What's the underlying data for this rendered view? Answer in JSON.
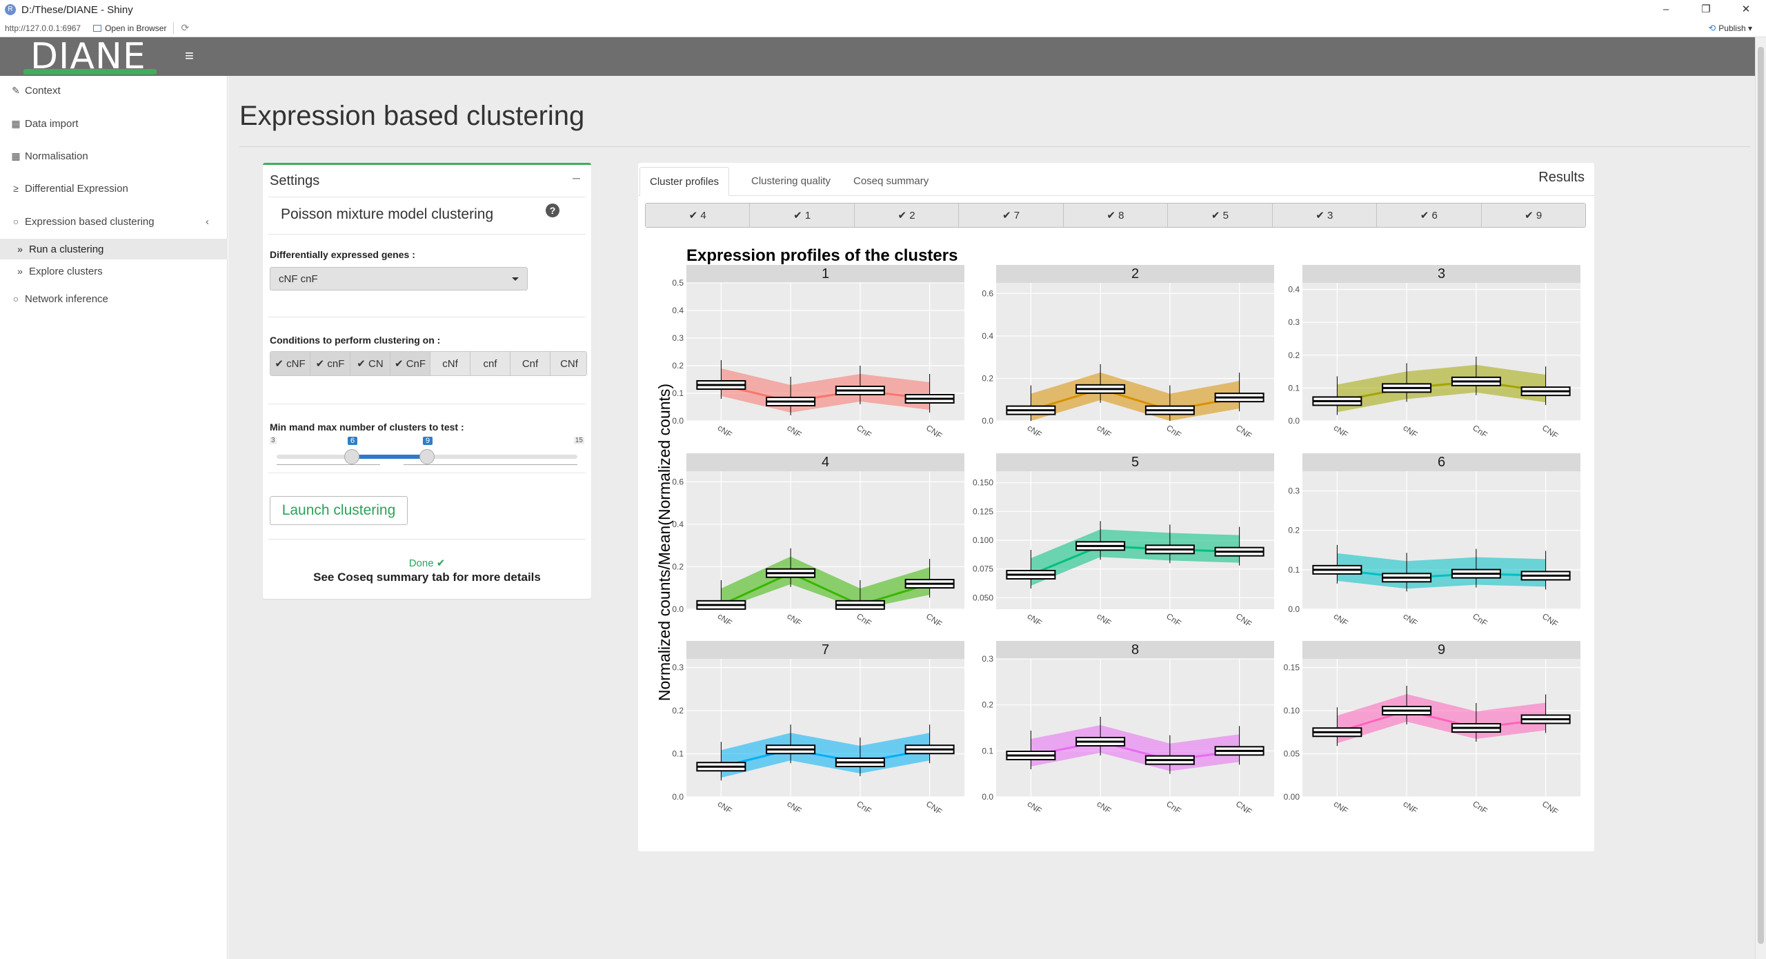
{
  "window": {
    "title": "D:/These/DIANE - Shiny",
    "url": "http://127.0.0.1:6967",
    "open_in_browser": "Open in Browser",
    "publish": "Publish"
  },
  "header": {
    "logo": "DIANE"
  },
  "sidebar": {
    "items": [
      {
        "label": "Context",
        "icon": "wrench-icon"
      },
      {
        "label": "Data import",
        "icon": "table-icon"
      },
      {
        "label": "Normalisation",
        "icon": "table-icon"
      },
      {
        "label": "Differential Expression",
        "icon": "greater-equal-icon"
      },
      {
        "label": "Expression based clustering",
        "icon": "circle-icon"
      },
      {
        "label": "Run a clustering",
        "icon": "double-chevron-icon"
      },
      {
        "label": "Explore clusters",
        "icon": "double-chevron-icon"
      },
      {
        "label": "Network inference",
        "icon": "circle-icon"
      }
    ]
  },
  "main": {
    "title": "Expression based clustering"
  },
  "settings": {
    "title": "Settings",
    "subtitle": "Poisson mixture model clustering",
    "deg_label": "Differentially expressed genes :",
    "deg_value": "cNF cnF",
    "cond_label": "Conditions to perform clustering on :",
    "conditions": [
      {
        "label": "cNF",
        "checked": true
      },
      {
        "label": "cnF",
        "checked": true
      },
      {
        "label": "CN",
        "checked": true
      },
      {
        "label": "CnF",
        "checked": true
      },
      {
        "label": "cNf",
        "checked": false
      },
      {
        "label": "cnf",
        "checked": false
      },
      {
        "label": "Cnf",
        "checked": false
      },
      {
        "label": "CNf",
        "checked": false
      }
    ],
    "slider_label": "Min mand max number of clusters to test :",
    "slider": {
      "min": 3,
      "max": 15,
      "from": 6,
      "to": 9
    },
    "launch": "Launch clustering",
    "done": "Done",
    "done_msg": "See Coseq summary tab for more details"
  },
  "results": {
    "title": "Results",
    "tabs": [
      "Cluster profiles",
      "Clustering quality",
      "Coseq summary"
    ],
    "cluster_buttons": [
      "4",
      "1",
      "2",
      "7",
      "8",
      "5",
      "3",
      "6",
      "9"
    ]
  },
  "colors": {
    "accent": "#3fae5a",
    "header": "#6e6e6e",
    "slider": "#3078c8"
  },
  "chart_data": {
    "type": "box",
    "title": "Expression profiles of the clusters",
    "ylabel": "Normalized counts/Mean(Normalized counts)",
    "categories": [
      "cNF",
      "cNF",
      "CnF",
      "CNF"
    ],
    "panels": [
      {
        "name": "1",
        "color": "#f8766d",
        "ylim": [
          0,
          0.5
        ],
        "ticks": [
          "0.0",
          "0.1",
          "0.2",
          "0.3",
          "0.4",
          "0.5"
        ],
        "medians": [
          0.13,
          0.07,
          0.11,
          0.08
        ]
      },
      {
        "name": "2",
        "color": "#d89000",
        "ylim": [
          0,
          0.65
        ],
        "ticks": [
          "0.0",
          "0.2",
          "0.4",
          "0.6"
        ],
        "medians": [
          0.05,
          0.15,
          0.05,
          0.11
        ]
      },
      {
        "name": "3",
        "color": "#a3a500",
        "ylim": [
          0,
          0.42
        ],
        "ticks": [
          "0.0",
          "0.1",
          "0.2",
          "0.3",
          "0.4"
        ],
        "medians": [
          0.06,
          0.1,
          0.12,
          0.09
        ]
      },
      {
        "name": "4",
        "color": "#39b600",
        "ylim": [
          0,
          0.65
        ],
        "ticks": [
          "0.0",
          "0.2",
          "0.4",
          "0.6"
        ],
        "medians": [
          0.02,
          0.17,
          0.02,
          0.12
        ]
      },
      {
        "name": "5",
        "color": "#00bf7d",
        "ylim": [
          0.04,
          0.16
        ],
        "ticks": [
          "0.050",
          "0.075",
          "0.100",
          "0.125",
          "0.150"
        ],
        "medians": [
          0.07,
          0.095,
          0.092,
          0.09
        ]
      },
      {
        "name": "6",
        "color": "#00bfc4",
        "ylim": [
          0,
          0.35
        ],
        "ticks": [
          "0.0",
          "0.1",
          "0.2",
          "0.3"
        ],
        "medians": [
          0.1,
          0.08,
          0.09,
          0.085
        ]
      },
      {
        "name": "7",
        "color": "#00b0f6",
        "ylim": [
          0,
          0.32
        ],
        "ticks": [
          "0.0",
          "0.1",
          "0.2",
          "0.3"
        ],
        "medians": [
          0.07,
          0.11,
          0.08,
          0.11
        ]
      },
      {
        "name": "8",
        "color": "#e76bf3",
        "ylim": [
          0,
          0.3
        ],
        "ticks": [
          "0.0",
          "0.1",
          "0.2",
          "0.3"
        ],
        "medians": [
          0.09,
          0.12,
          0.08,
          0.1
        ]
      },
      {
        "name": "9",
        "color": "#ff62bc",
        "ylim": [
          0,
          0.16
        ],
        "ticks": [
          "0.00",
          "0.05",
          "0.10",
          "0.15"
        ],
        "medians": [
          0.075,
          0.1,
          0.08,
          0.09
        ]
      }
    ]
  }
}
